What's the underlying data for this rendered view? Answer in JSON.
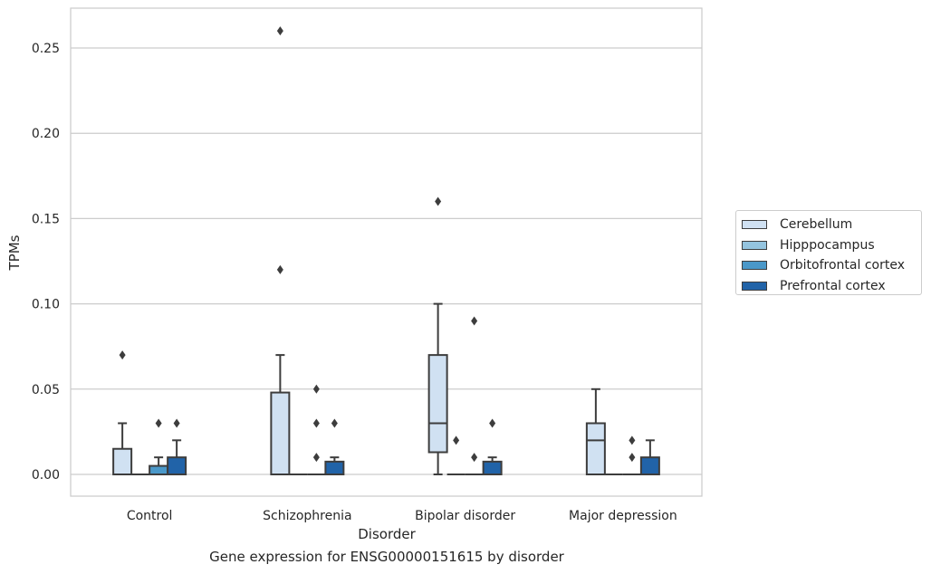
{
  "caption": "Gene expression for ENSG00000151615 by disorder",
  "chart_data": {
    "type": "box",
    "title": "",
    "xlabel": "Disorder",
    "ylabel": "TPMs",
    "categories": [
      "Control",
      "Schizophrenia",
      "Bipolar disorder",
      "Major depression"
    ],
    "ylim": [
      -0.013,
      0.274
    ],
    "yticks": [
      0.0,
      0.05,
      0.1,
      0.15,
      0.2,
      0.25
    ],
    "ytick_labels": [
      "0.00",
      "0.05",
      "0.10",
      "0.15",
      "0.20",
      "0.25"
    ],
    "grid": true,
    "legend_position": "right",
    "series": [
      {
        "name": "Cerebellum",
        "color": "#d0e1f2",
        "boxes": [
          {
            "q1": 0.0,
            "median": 0.0,
            "q3": 0.015,
            "whislo": 0.0,
            "whishi": 0.03,
            "fliers": [
              0.07
            ]
          },
          {
            "q1": 0.0,
            "median": 0.0,
            "q3": 0.048,
            "whislo": 0.0,
            "whishi": 0.07,
            "fliers": [
              0.12,
              0.26
            ]
          },
          {
            "q1": 0.013,
            "median": 0.03,
            "q3": 0.07,
            "whislo": 0.0,
            "whishi": 0.1,
            "fliers": [
              0.16
            ]
          },
          {
            "q1": 0.0,
            "median": 0.02,
            "q3": 0.03,
            "whislo": 0.0,
            "whishi": 0.05,
            "fliers": []
          }
        ]
      },
      {
        "name": "Hipppocampus",
        "color": "#94c4df",
        "boxes": [
          {
            "q1": 0.0,
            "median": 0.0,
            "q3": 0.0,
            "whislo": 0.0,
            "whishi": 0.0,
            "fliers": []
          },
          {
            "q1": 0.0,
            "median": 0.0,
            "q3": 0.0,
            "whislo": 0.0,
            "whishi": 0.0,
            "fliers": []
          },
          {
            "q1": 0.0,
            "median": 0.0,
            "q3": 0.0,
            "whislo": 0.0,
            "whishi": 0.0,
            "fliers": [
              0.02
            ]
          },
          {
            "q1": 0.0,
            "median": 0.0,
            "q3": 0.0,
            "whislo": 0.0,
            "whishi": 0.0,
            "fliers": []
          }
        ]
      },
      {
        "name": "Orbitofrontal cortex",
        "color": "#4a98c9",
        "boxes": [
          {
            "q1": 0.0,
            "median": 0.0,
            "q3": 0.005,
            "whislo": 0.0,
            "whishi": 0.01,
            "fliers": [
              0.03
            ]
          },
          {
            "q1": 0.0,
            "median": 0.0,
            "q3": 0.0,
            "whislo": 0.0,
            "whishi": 0.0,
            "fliers": [
              0.01,
              0.03,
              0.05
            ]
          },
          {
            "q1": 0.0,
            "median": 0.0,
            "q3": 0.0,
            "whislo": 0.0,
            "whishi": 0.0,
            "fliers": [
              0.01,
              0.09
            ]
          },
          {
            "q1": 0.0,
            "median": 0.0,
            "q3": 0.0,
            "whislo": 0.0,
            "whishi": 0.0,
            "fliers": [
              0.01,
              0.02
            ]
          }
        ]
      },
      {
        "name": "Prefrontal cortex",
        "color": "#2163a8",
        "boxes": [
          {
            "q1": 0.0,
            "median": 0.0,
            "q3": 0.01,
            "whislo": 0.0,
            "whishi": 0.02,
            "fliers": [
              0.03
            ]
          },
          {
            "q1": 0.0,
            "median": 0.0,
            "q3": 0.0075,
            "whislo": 0.0,
            "whishi": 0.01,
            "fliers": [
              0.03
            ]
          },
          {
            "q1": 0.0,
            "median": 0.0,
            "q3": 0.0075,
            "whislo": 0.0,
            "whishi": 0.01,
            "fliers": [
              0.03
            ]
          },
          {
            "q1": 0.0,
            "median": 0.0,
            "q3": 0.01,
            "whislo": 0.0,
            "whishi": 0.02,
            "fliers": []
          }
        ]
      }
    ]
  }
}
